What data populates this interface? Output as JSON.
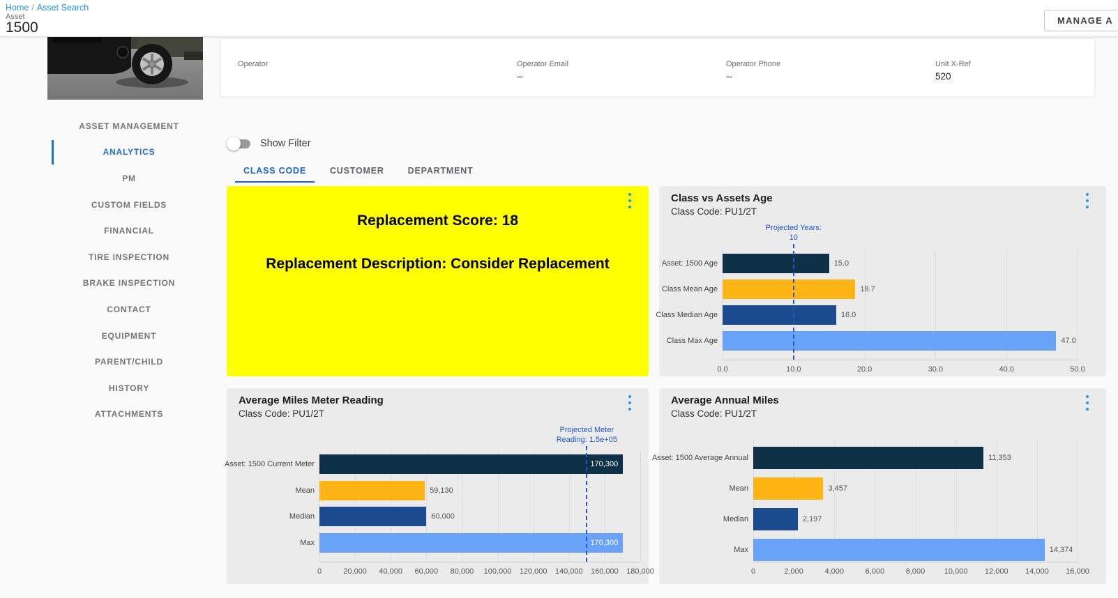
{
  "header": {
    "breadcrumb": [
      "Home",
      "Asset Search"
    ],
    "breadcrumb_separator": "/",
    "asset_label": "Asset",
    "asset_id": "1500",
    "manage_button": "MANAGE A"
  },
  "info_card": {
    "fields": [
      {
        "label": "Operator",
        "value": ""
      },
      {
        "label": "Operator Email",
        "value": "--"
      },
      {
        "label": "Operator Phone",
        "value": "--"
      },
      {
        "label": "Unit X-Ref",
        "value": "520"
      }
    ]
  },
  "sidebar": {
    "items": [
      "ASSET MANAGEMENT",
      "ANALYTICS",
      "PM",
      "CUSTOM FIELDS",
      "FINANCIAL",
      "TIRE INSPECTION",
      "BRAKE INSPECTION",
      "CONTACT",
      "EQUIPMENT",
      "PARENT/CHILD",
      "HISTORY",
      "ATTACHMENTS"
    ],
    "active_item": "ANALYTICS"
  },
  "filter": {
    "label": "Show Filter",
    "enabled": false
  },
  "tabs": [
    {
      "label": "CLASS CODE",
      "active": true
    },
    {
      "label": "CUSTOMER",
      "active": false
    },
    {
      "label": "DEPARTMENT",
      "active": false
    }
  ],
  "replacement_card": {
    "score_text": "Replacement Score: 18",
    "description_text": "Replacement Description: Consider Replacement",
    "background": "#ffff00"
  },
  "colors": {
    "bar_navy": "#0e3147",
    "bar_orange": "#feb414",
    "bar_blue": "#1b4a8f",
    "bar_lightblue": "#69a2f6",
    "projected_line": "#2255cc",
    "kebab": "#2196f3",
    "active_tab": "#1a67c9",
    "link": "#2196f3",
    "panel_bg": "#ebebeb",
    "card_yellow": "#ffff00"
  },
  "chart_data": [
    {
      "type": "bar",
      "orientation": "horizontal",
      "title": "Class vs Assets Age",
      "subtitle": "Class Code: PU1/2T",
      "categories": [
        "Asset: 1500 Age",
        "Class Mean Age",
        "Class Median Age",
        "Class Max Age"
      ],
      "values": [
        15.0,
        18.7,
        16.0,
        47.0
      ],
      "value_labels": [
        "15.0",
        "18.7",
        "16.0",
        "47.0"
      ],
      "label_inside": [
        false,
        false,
        false,
        false
      ],
      "bar_colors": [
        "#0e3147",
        "#feb414",
        "#1b4a8f",
        "#69a2f6"
      ],
      "xlim": [
        0,
        50
      ],
      "ticks": [
        0,
        10,
        20,
        30,
        40,
        50
      ],
      "tick_labels": [
        "0.0",
        "10.0",
        "20.0",
        "30.0",
        "40.0",
        "50.0"
      ],
      "projected": {
        "value": 10,
        "label_lines": [
          "Projected Years:",
          "10"
        ]
      },
      "grid": true,
      "legend": false
    },
    {
      "type": "bar",
      "orientation": "horizontal",
      "title": "Average Miles Meter Reading",
      "subtitle": "Class Code: PU1/2T",
      "categories": [
        "Asset: 1500 Current Meter",
        "Mean",
        "Median",
        "Max"
      ],
      "values": [
        170300,
        59130,
        60000,
        170300
      ],
      "value_labels": [
        "170,300",
        "59,130",
        "60,000",
        "170,300"
      ],
      "label_inside": [
        true,
        false,
        false,
        true
      ],
      "bar_colors": [
        "#0e3147",
        "#feb414",
        "#1b4a8f",
        "#69a2f6"
      ],
      "xlim": [
        0,
        180000
      ],
      "ticks": [
        0,
        20000,
        40000,
        60000,
        80000,
        100000,
        120000,
        140000,
        160000,
        180000
      ],
      "tick_labels": [
        "0",
        "20,000",
        "40,000",
        "60,000",
        "80,000",
        "100,000",
        "120,000",
        "140,000",
        "160,000",
        "180,000"
      ],
      "projected": {
        "value": 150000,
        "label_lines": [
          "Projected Meter",
          "Reading: 1.5e+05"
        ]
      },
      "grid": true,
      "legend": false
    },
    {
      "type": "bar",
      "orientation": "horizontal",
      "title": "Average Annual Miles",
      "subtitle": "Class Code: PU1/2T",
      "categories": [
        "Asset: 1500 Average Annual",
        "Mean",
        "Median",
        "Max"
      ],
      "values": [
        11353,
        3457,
        2197,
        14374
      ],
      "value_labels": [
        "11,353",
        "3,457",
        "2,197",
        "14,374"
      ],
      "label_inside": [
        false,
        false,
        false,
        false
      ],
      "bar_colors": [
        "#0e3147",
        "#feb414",
        "#1b4a8f",
        "#69a2f6"
      ],
      "xlim": [
        0,
        16000
      ],
      "ticks": [
        0,
        2000,
        4000,
        6000,
        8000,
        10000,
        12000,
        14000,
        16000
      ],
      "tick_labels": [
        "0",
        "2,000",
        "4,000",
        "6,000",
        "8,000",
        "10,000",
        "12,000",
        "14,000",
        "16,000"
      ],
      "projected": null,
      "grid": true,
      "legend": false
    }
  ]
}
